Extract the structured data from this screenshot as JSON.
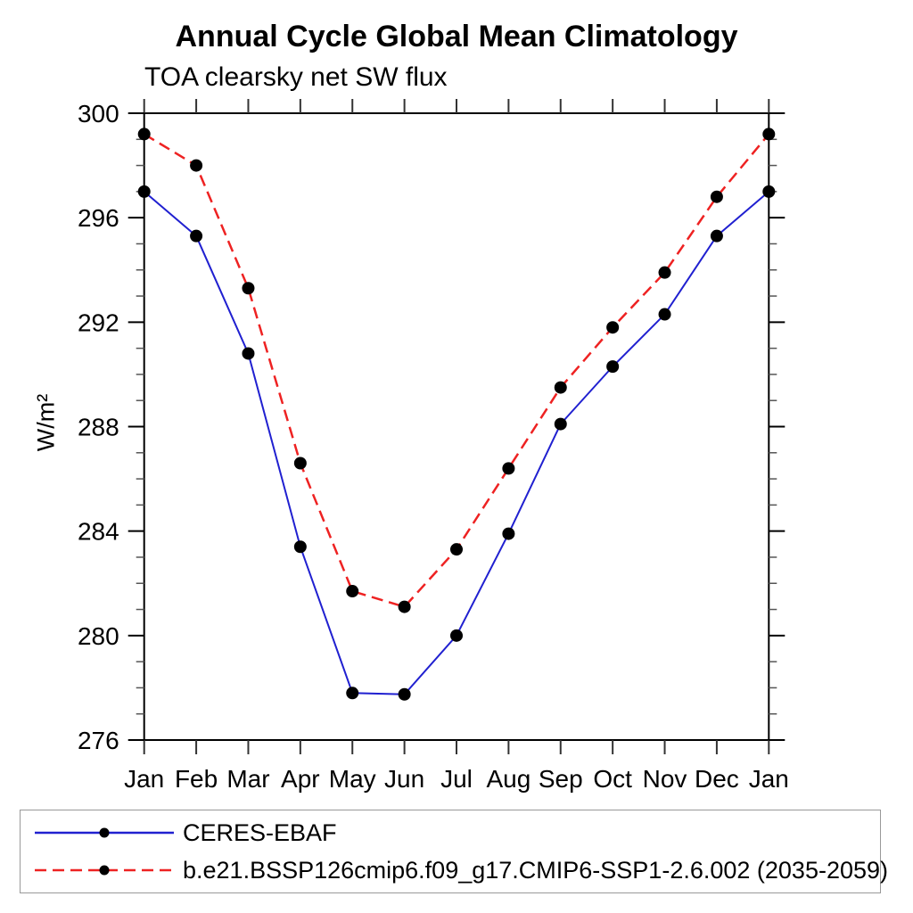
{
  "chart_data": {
    "type": "line",
    "title": "Annual Cycle Global Mean Climatology",
    "subtitle": "TOA clearsky net SW flux",
    "ylabel": "W/m²",
    "xlabel": "",
    "months": [
      "Jan",
      "Feb",
      "Mar",
      "Apr",
      "May",
      "Jun",
      "Jul",
      "Aug",
      "Sep",
      "Oct",
      "Nov",
      "Dec",
      "Jan"
    ],
    "ylim": [
      276,
      300
    ],
    "yticks": [
      276,
      280,
      284,
      288,
      292,
      296,
      300
    ],
    "ytick_minor_step": 1,
    "grid": false,
    "legend_position": "bottom-left-box",
    "marker": "filled-circle",
    "marker_color": "#000000",
    "axis_color": "#000000",
    "series": [
      {
        "name": "CERES-EBAF",
        "color": "#2020d0",
        "line_style": "solid",
        "values": [
          297.0,
          295.3,
          290.8,
          283.4,
          277.8,
          277.75,
          280.0,
          283.9,
          288.1,
          290.3,
          292.3,
          295.3,
          297.0
        ]
      },
      {
        "name": "b.e21.BSSP126cmip6.f09_g17.CMIP6-SSP1-2.6.002 (2035-2059)",
        "color": "#ee2222",
        "line_style": "dashed",
        "values": [
          299.2,
          298.0,
          293.3,
          286.6,
          281.7,
          281.1,
          283.3,
          286.4,
          289.5,
          291.8,
          293.9,
          296.8,
          299.2
        ]
      }
    ]
  }
}
